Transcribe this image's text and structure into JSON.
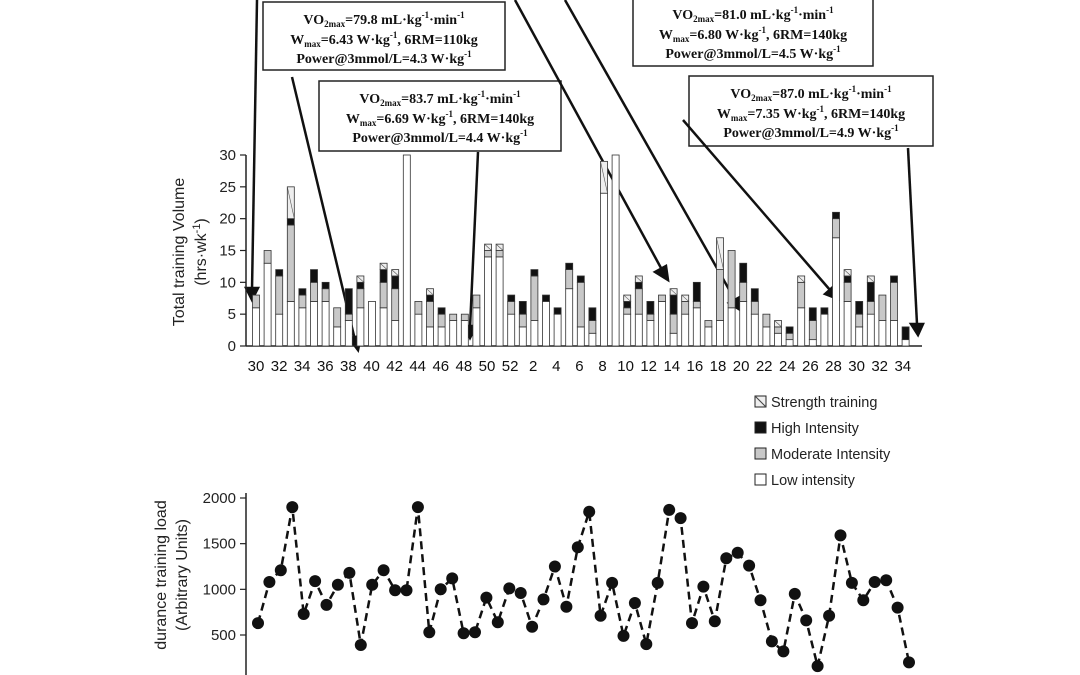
{
  "annotations": [
    {
      "vo2": "79.8",
      "wmax": "6.43",
      "rm": "110kg",
      "power": "4.3"
    },
    {
      "vo2": "81.0",
      "wmax": "6.80",
      "rm": "140kg",
      "power": "4.5"
    },
    {
      "vo2": "83.7",
      "wmax": "6.69",
      "rm": "140kg",
      "power": "4.4"
    },
    {
      "vo2": "87.0",
      "wmax": "7.35",
      "rm": "140kg",
      "power": "4.9"
    }
  ],
  "chart_data": [
    {
      "type": "bar",
      "stacked": true,
      "ylabel": "Total training Volume (hrs·wk⁻¹)",
      "xlabel": "",
      "ylim": [
        0,
        30
      ],
      "yticks": [
        0,
        5,
        10,
        15,
        20,
        25,
        30
      ],
      "xticks": [
        "30",
        "32",
        "34",
        "36",
        "38",
        "40",
        "42",
        "44",
        "46",
        "48",
        "50",
        "52",
        "2",
        "4",
        "6",
        "8",
        "10",
        "12",
        "14",
        "16",
        "18",
        "20",
        "22",
        "24",
        "26",
        "28",
        "30",
        "32",
        "34"
      ],
      "legend_position": "right, below the chart",
      "series": [
        {
          "name": "Low intensity",
          "color": "#ffffff",
          "values": [
            6,
            13,
            5,
            7,
            6,
            7,
            7,
            3,
            4,
            6,
            7,
            6,
            4,
            30,
            5,
            3,
            3,
            4,
            4,
            6,
            14,
            14,
            5,
            3,
            4,
            7,
            5,
            9,
            3,
            2,
            24,
            30,
            5,
            5,
            4,
            7,
            2,
            5,
            6,
            3,
            4,
            6,
            7,
            5,
            3,
            2,
            1,
            6,
            1,
            5,
            17,
            7,
            3,
            5,
            4,
            4,
            1
          ]
        },
        {
          "name": "Moderate Intensity",
          "color": "#c8c8c8",
          "values": [
            2,
            2,
            6,
            12,
            2,
            3,
            2,
            3,
            1,
            3,
            0,
            4,
            5,
            0,
            2,
            4,
            2,
            1,
            1,
            2,
            1,
            1,
            2,
            2,
            7,
            0,
            0,
            3,
            7,
            2,
            0,
            0,
            1,
            4,
            1,
            1,
            3,
            2,
            1,
            1,
            8,
            9,
            3,
            2,
            2,
            1,
            1,
            4,
            3,
            0,
            3,
            3,
            2,
            2,
            4,
            6,
            0
          ]
        },
        {
          "name": "High Intensity",
          "color": "#111111",
          "values": [
            0,
            0,
            1,
            1,
            1,
            2,
            1,
            0,
            4,
            1,
            0,
            2,
            2,
            0,
            0,
            1,
            1,
            0,
            0,
            0,
            0,
            0,
            1,
            2,
            1,
            1,
            1,
            1,
            1,
            2,
            0,
            0,
            1,
            1,
            2,
            0,
            3,
            0,
            3,
            0,
            0,
            0,
            3,
            2,
            0,
            0,
            1,
            0,
            2,
            1,
            1,
            1,
            2,
            3,
            0,
            1,
            2
          ]
        },
        {
          "name": "Strength training",
          "color": "#eeeeee",
          "values": [
            0,
            0,
            0,
            5,
            0,
            0,
            0,
            0,
            0,
            1,
            0,
            1,
            1,
            0,
            0,
            1,
            0,
            0,
            0,
            0,
            1,
            1,
            0,
            0,
            0,
            0,
            0,
            0,
            0,
            0,
            5,
            0,
            1,
            1,
            0,
            0,
            1,
            1,
            0,
            0,
            5,
            0,
            0,
            0,
            0,
            1,
            0,
            1,
            0,
            0,
            0,
            1,
            0,
            1,
            0,
            0,
            0
          ]
        }
      ]
    },
    {
      "type": "line",
      "ylabel": "Endurance training load (Arbitrary Units)",
      "xlabel": "",
      "ylim": [
        0,
        2000
      ],
      "yticks": [
        500,
        1000,
        1500,
        2000
      ],
      "series": [
        {
          "name": "",
          "color": "#111111",
          "values": [
            630,
            1080,
            1210,
            1900,
            730,
            1090,
            830,
            1050,
            1180,
            390,
            1050,
            1210,
            990,
            990,
            1900,
            530,
            1000,
            1120,
            520,
            530,
            910,
            640,
            1010,
            960,
            590,
            890,
            1250,
            810,
            1460,
            1850,
            710,
            1070,
            490,
            850,
            400,
            1070,
            1870,
            1780,
            630,
            1030,
            650,
            1340,
            1400,
            1260,
            880,
            430,
            320,
            950,
            660,
            160,
            710,
            1590,
            1070,
            880,
            1080,
            1100,
            800,
            200
          ]
        }
      ]
    }
  ]
}
